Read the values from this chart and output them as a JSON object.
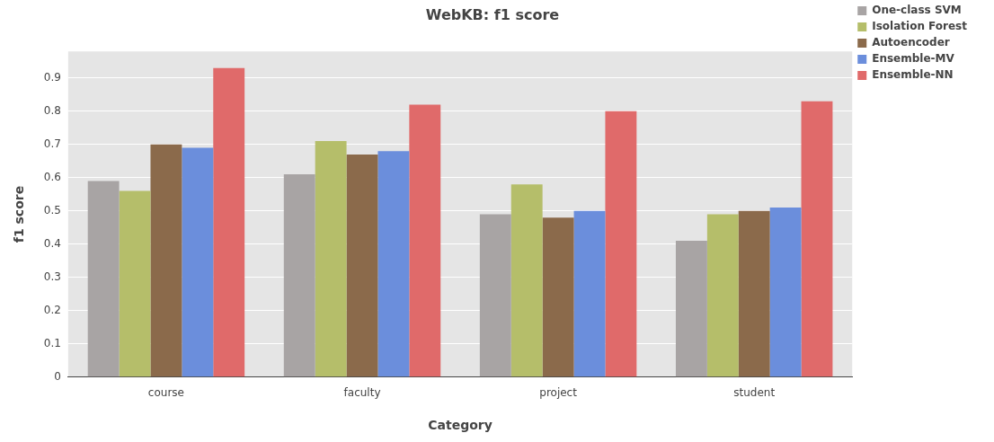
{
  "chart_data": {
    "type": "bar",
    "title": "WebKB: f1 score",
    "xlabel": "Category",
    "ylabel": "f1 score",
    "categories": [
      "course",
      "faculty",
      "project",
      "student"
    ],
    "series": [
      {
        "name": "One-class SVM",
        "color": "#a8a4a4",
        "values": [
          0.59,
          0.61,
          0.49,
          0.41
        ]
      },
      {
        "name": "Isolation Forest",
        "color": "#b5be6a",
        "values": [
          0.56,
          0.71,
          0.58,
          0.49
        ]
      },
      {
        "name": "Autoencoder",
        "color": "#8b6a4b",
        "values": [
          0.7,
          0.67,
          0.48,
          0.5
        ]
      },
      {
        "name": "Ensemble-MV",
        "color": "#6b8edc",
        "values": [
          0.69,
          0.68,
          0.5,
          0.51
        ]
      },
      {
        "name": "Ensemble-NN",
        "color": "#e06a6a",
        "values": [
          0.93,
          0.82,
          0.8,
          0.83
        ]
      }
    ],
    "ylim": [
      0,
      0.98
    ],
    "yticks": [
      0,
      0.1,
      0.2,
      0.3,
      0.4,
      0.5,
      0.6,
      0.7,
      0.8,
      0.9
    ],
    "grid": "y",
    "legend": "top right"
  }
}
